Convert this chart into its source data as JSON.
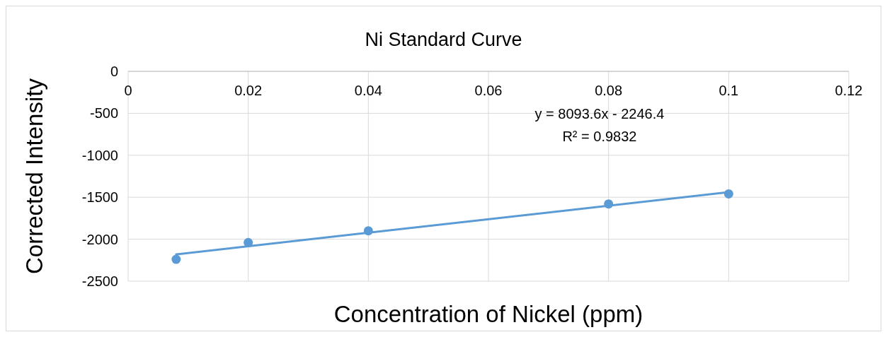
{
  "chart_data": {
    "type": "scatter",
    "title": "Ni Standard Curve",
    "xlabel": "Concentration of Nickel (ppm)",
    "ylabel": "Corrected Intensity",
    "series": [
      {
        "color": "#5b9bd5",
        "marker": "circle",
        "x": [
          0.008,
          0.02,
          0.04,
          0.08,
          0.1
        ],
        "values": [
          -2240,
          -2040,
          -1900,
          -1580,
          -1460
        ]
      },
      {
        "type": "line",
        "color": "#5b9bd5",
        "marker": "none",
        "x": [
          0.008,
          0.1
        ],
        "values": [
          -2180,
          -1440
        ]
      }
    ],
    "xlim": [
      0,
      0.12
    ],
    "xticks": [
      0,
      0.02,
      0.04,
      0.06,
      0.08,
      0.1,
      0.12
    ],
    "ylim": [
      -2500,
      0
    ],
    "yticks": [
      -2500,
      -2000,
      -1500,
      -1000,
      -500,
      0
    ],
    "grid": true,
    "line_style": "solid",
    "annotations": [
      "y = 8093.6x - 2246.4",
      "R² = 0.9832"
    ]
  }
}
